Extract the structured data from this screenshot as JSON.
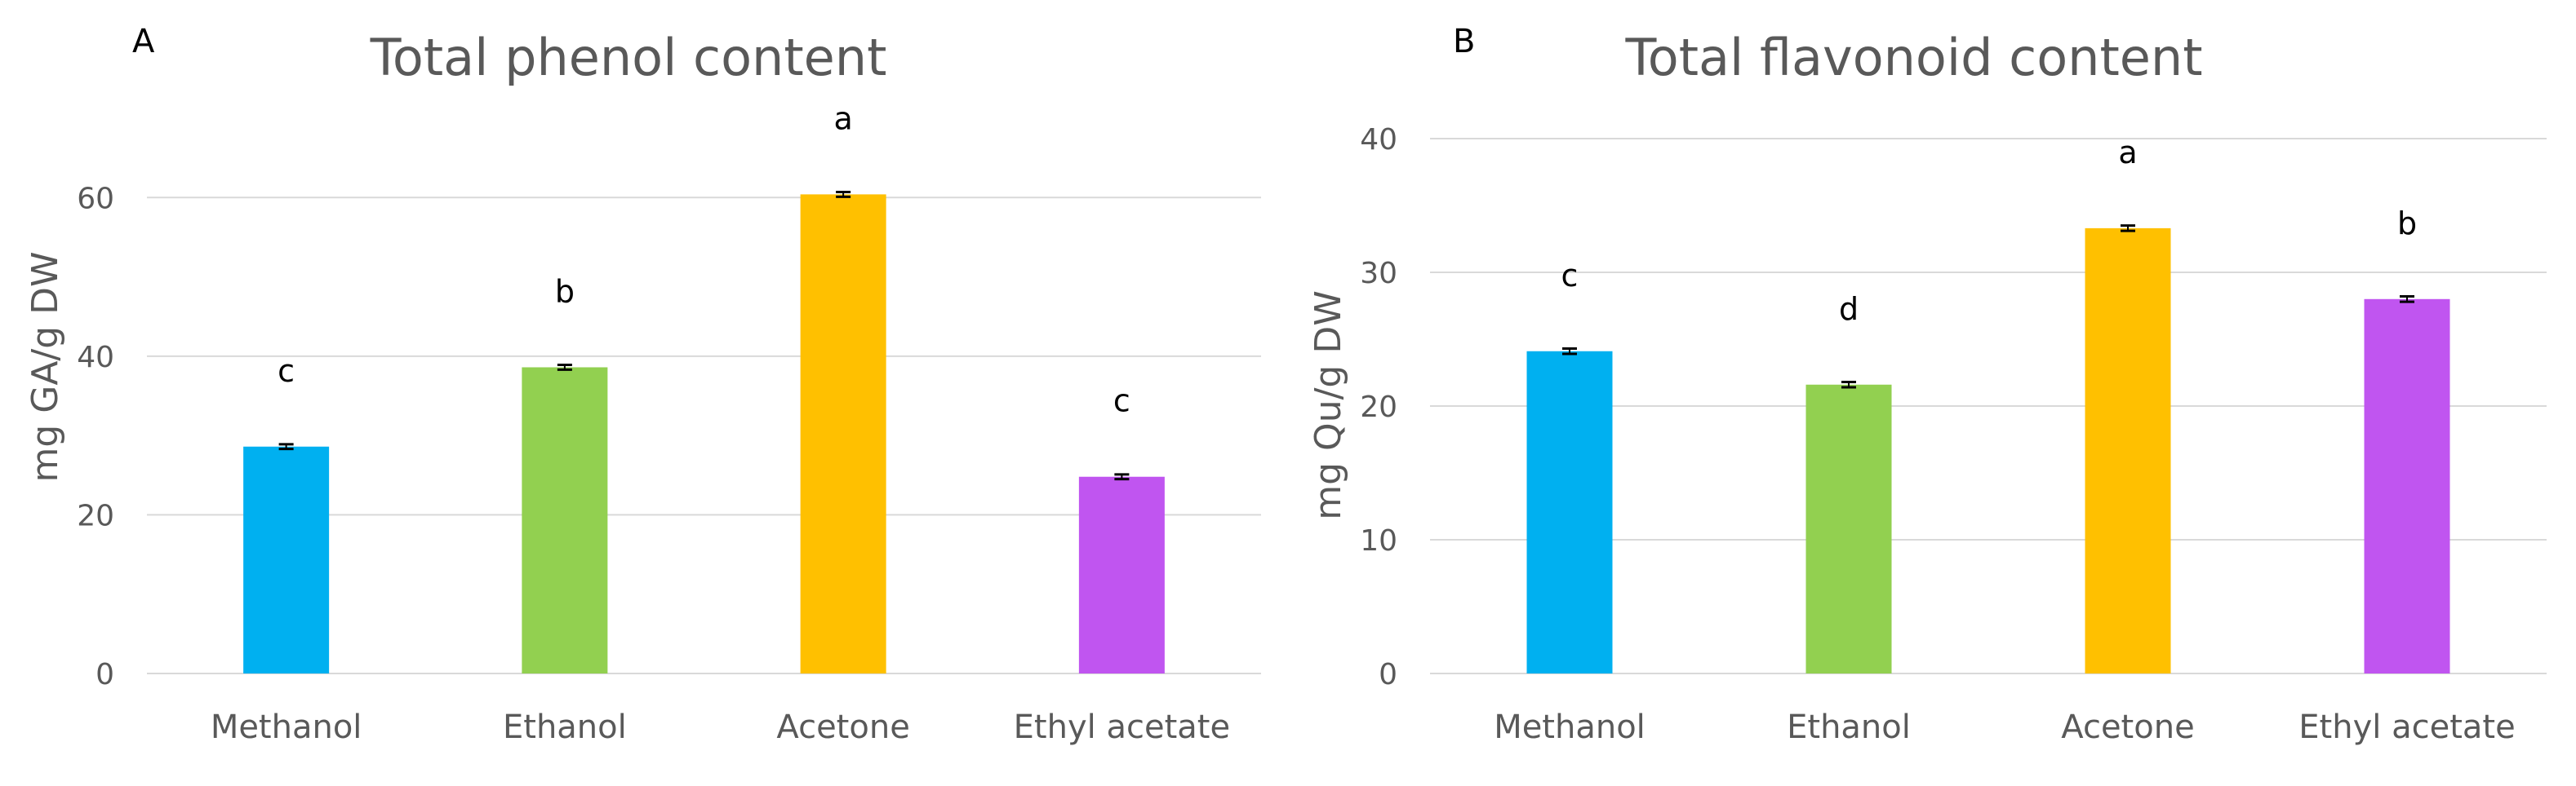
{
  "chart_data": [
    {
      "type": "bar",
      "panel_label": "A",
      "title": "Total phenol content",
      "xlabel": "",
      "ylabel": "mg GA/g DW",
      "ylim": [
        0,
        70
      ],
      "yticks": [
        0,
        20,
        40,
        60
      ],
      "grid": true,
      "categories": [
        "Methanol",
        "Ethanol",
        "Acetone",
        "Ethyl acetate"
      ],
      "values": [
        28.6,
        38.6,
        60.4,
        24.8
      ],
      "errors": [
        0.3,
        0.3,
        0.3,
        0.3
      ],
      "significance_letters": [
        "c",
        "b",
        "a",
        "c"
      ],
      "colors": [
        "#00B0F0",
        "#92D050",
        "#FFC000",
        "#C055F0"
      ]
    },
    {
      "type": "bar",
      "panel_label": "B",
      "title": "Total flavonoid content",
      "xlabel": "",
      "ylabel": "mg Qu/g DW",
      "ylim": [
        0,
        40
      ],
      "yticks": [
        0,
        10,
        20,
        30,
        40
      ],
      "grid": true,
      "categories": [
        "Methanol",
        "Ethanol",
        "Acetone",
        "Ethyl acetate"
      ],
      "values": [
        24.1,
        21.6,
        33.3,
        28.0
      ],
      "errors": [
        0.2,
        0.2,
        0.2,
        0.2
      ],
      "significance_letters": [
        "c",
        "d",
        "a",
        "b"
      ],
      "colors": [
        "#00B0F0",
        "#92D050",
        "#FFC000",
        "#C055F0"
      ]
    }
  ]
}
